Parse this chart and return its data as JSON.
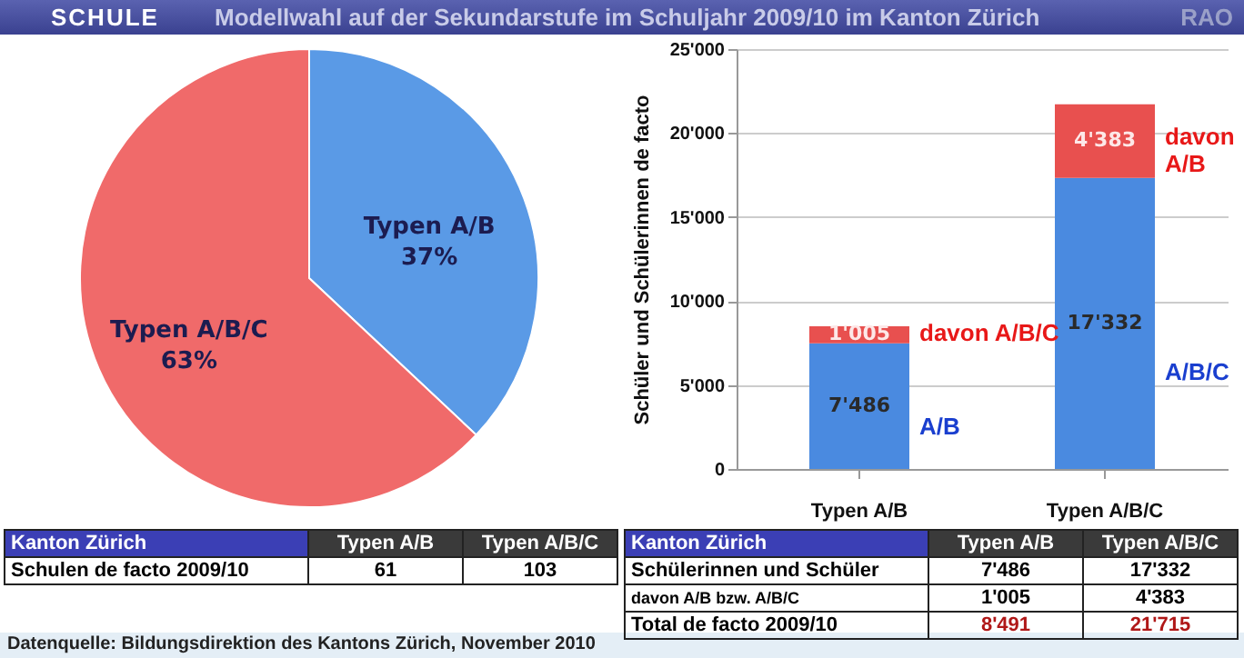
{
  "chart_data": [
    {
      "type": "pie",
      "title": "Modellwahl auf der Sekundarstufe im Schuljahr 2009/10 im Kanton Zürich",
      "categories": [
        "Typen A/B",
        "Typen A/B/C"
      ],
      "values": [
        37,
        63
      ],
      "colors": [
        "#5a9ae6",
        "#f06a6a"
      ],
      "value_labels": [
        "37%",
        "63%"
      ],
      "annotations": [
        "SCHULE",
        "RAO",
        "Datenquelle: Bildungsdirektion des Kantons Zürich, November  2010"
      ]
    },
    {
      "type": "bar",
      "stacked": true,
      "categories": [
        "Typen A/B",
        "Typen A/B/C"
      ],
      "ylabel": "Schüler und Schülerinnen de facto",
      "ylim": [
        0,
        25000
      ],
      "yticks": [
        {
          "value": 0,
          "label": "0"
        },
        {
          "value": 5000,
          "label": "5'000"
        },
        {
          "value": 10000,
          "label": "10'000"
        },
        {
          "value": 15000,
          "label": "15'000"
        },
        {
          "value": 20000,
          "label": "20'000"
        },
        {
          "value": 25000,
          "label": "25'000"
        }
      ],
      "grid": "y",
      "series": [
        {
          "color": "#4a8ae0",
          "values": [
            7486,
            17332
          ],
          "value_labels": [
            "7'486",
            "17'332"
          ]
        },
        {
          "color": "#e8504f",
          "values": [
            1005,
            4383
          ],
          "value_labels": [
            "1'005",
            "4'383"
          ]
        }
      ],
      "annotations": [
        "A/B",
        "davon A/B/C",
        "A/B/C",
        "davon A/B"
      ]
    },
    {
      "type": "other",
      "title": "Kanton Zürich",
      "categories": [
        "Typen A/B",
        "Typen A/B/C"
      ],
      "y_categories": [
        "Schulen de facto 2009/10"
      ],
      "cell_labels": [
        [
          "61",
          "103"
        ]
      ]
    },
    {
      "type": "other",
      "title": "Kanton Zürich",
      "categories": [
        "Typen A/B",
        "Typen A/B/C"
      ],
      "y_categories": [
        "Schülerinnen und Schüler",
        "davon A/B bzw. A/B/C",
        "Total de facto 2009/10"
      ],
      "cell_labels": [
        [
          "7'486",
          "17'332"
        ],
        [
          "1'005",
          "4'383"
        ],
        [
          "8'491",
          "21'715"
        ]
      ]
    }
  ]
}
